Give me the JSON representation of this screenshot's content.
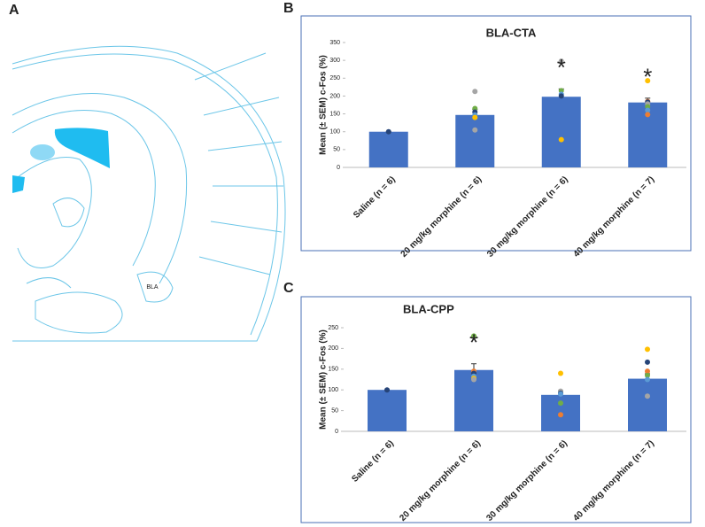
{
  "panels": [
    "A",
    "B",
    "C"
  ],
  "atlas_label": "BLA",
  "chart_data": [
    {
      "type": "bar",
      "title": "BLA-CTA",
      "y_label": "Mean (± SEM) c-Fos (%)",
      "categories": [
        "Saline (n = 6)",
        "20 mg/kg morphine (n = 6)",
        "30 mg/kg morphine (n = 6)",
        "40 mg/kg morphine (n = 7)"
      ],
      "values": [
        100,
        147,
        198,
        182
      ],
      "errors": [
        0,
        15,
        22,
        12
      ],
      "color": "#4472c4",
      "ylim": [
        0,
        350
      ],
      "yticks": [
        0,
        50,
        100,
        150,
        200,
        250,
        300,
        350
      ],
      "annotations": [
        null,
        null,
        "*",
        "*"
      ],
      "dots": [
        [
          {
            "value": 100,
            "color": "#264478"
          }
        ],
        [
          {
            "value": 213,
            "color": "#a5a5a5"
          },
          {
            "value": 165,
            "color": "#70ad47"
          },
          {
            "value": 155,
            "color": "#264478"
          },
          {
            "value": 147,
            "color": "#5b9bd5"
          },
          {
            "value": 140,
            "color": "#ffc000"
          },
          {
            "value": 105,
            "color": "#a5a5a5"
          }
        ],
        [
          {
            "value": 298,
            "color": "#a5a5a5"
          },
          {
            "value": 215,
            "color": "#70ad47"
          },
          {
            "value": 205,
            "color": "#5b9bd5"
          },
          {
            "value": 200,
            "color": "#264478"
          },
          {
            "value": 78,
            "color": "#ffc000"
          }
        ],
        [
          {
            "value": 243,
            "color": "#ffc000"
          },
          {
            "value": 185,
            "color": "#ed7d31"
          },
          {
            "value": 183,
            "color": "#264478"
          },
          {
            "value": 178,
            "color": "#a5a5a5"
          },
          {
            "value": 170,
            "color": "#70ad47"
          },
          {
            "value": 160,
            "color": "#5b9bd5"
          },
          {
            "value": 148,
            "color": "#ed7d31"
          }
        ]
      ]
    },
    {
      "type": "bar",
      "title": "BLA-CPP",
      "y_label": "Mean (± SEM) c-Fos (%)",
      "categories": [
        "Saline (n = 6)",
        "20 mg/kg morphine (n = 6)",
        "30 mg/kg morphine (n = 6)",
        "40 mg/kg morphine (n = 7)"
      ],
      "values": [
        100,
        148,
        88,
        127
      ],
      "errors": [
        0,
        15,
        10,
        12
      ],
      "color": "#4472c4",
      "ylim": [
        0,
        250
      ],
      "yticks": [
        0,
        50,
        100,
        150,
        200,
        250
      ],
      "annotations": [
        null,
        "*",
        null,
        null
      ],
      "dots": [
        [
          {
            "value": 100,
            "color": "#264478"
          }
        ],
        [
          {
            "value": 230,
            "color": "#70ad47"
          },
          {
            "value": 145,
            "color": "#ed7d31"
          },
          {
            "value": 140,
            "color": "#264478"
          },
          {
            "value": 133,
            "color": "#5b9bd5"
          },
          {
            "value": 128,
            "color": "#ffc000"
          },
          {
            "value": 125,
            "color": "#a5a5a5"
          }
        ],
        [
          {
            "value": 140,
            "color": "#ffc000"
          },
          {
            "value": 97,
            "color": "#a5a5a5"
          },
          {
            "value": 92,
            "color": "#264478"
          },
          {
            "value": 90,
            "color": "#5b9bd5"
          },
          {
            "value": 68,
            "color": "#70ad47"
          },
          {
            "value": 40,
            "color": "#ed7d31"
          }
        ],
        [
          {
            "value": 198,
            "color": "#ffc000"
          },
          {
            "value": 167,
            "color": "#264478"
          },
          {
            "value": 145,
            "color": "#ed7d31"
          },
          {
            "value": 135,
            "color": "#70ad47"
          },
          {
            "value": 125,
            "color": "#5b9bd5"
          },
          {
            "value": 85,
            "color": "#a5a5a5"
          }
        ]
      ]
    }
  ]
}
